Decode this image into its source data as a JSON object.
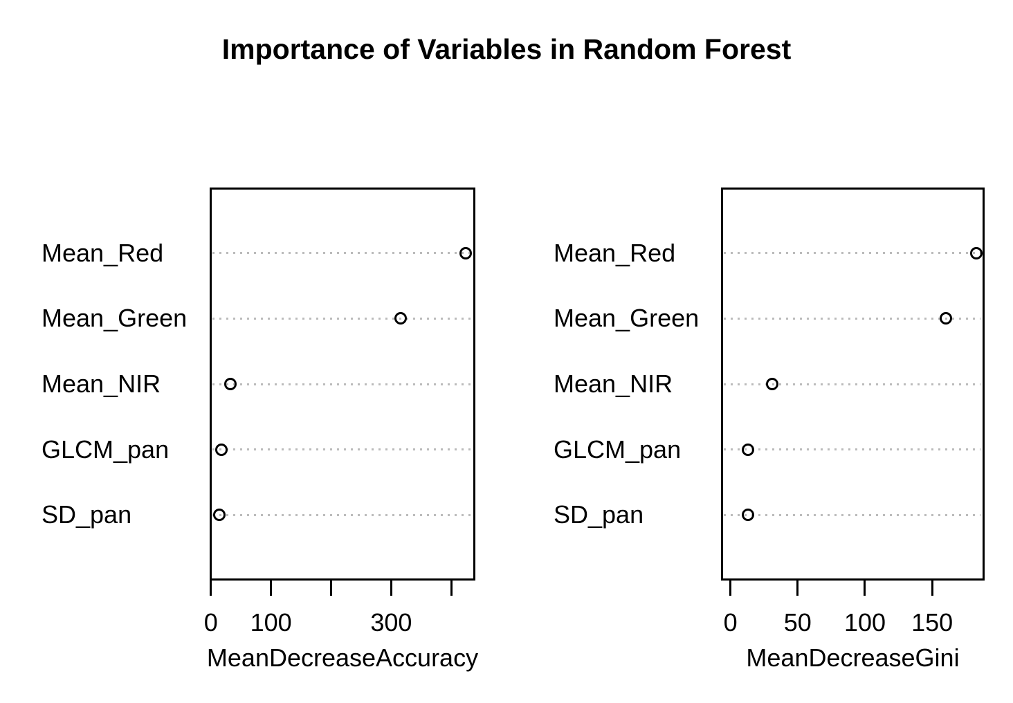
{
  "title": "Importance of Variables in Random Forest",
  "colors": {
    "foreground": "#000000",
    "grid": "#bbbbbb",
    "background": "#ffffff"
  },
  "chart_data": [
    {
      "type": "scatter",
      "subtype": "dotchart",
      "name": "accuracy-panel",
      "xlabel": "MeanDecreaseAccuracy",
      "categories": [
        "Mean_Red",
        "Mean_Green",
        "Mean_NIR",
        "GLCM_pan",
        "SD_pan"
      ],
      "values": [
        424,
        316,
        32,
        18,
        14
      ],
      "xlim": [
        -2,
        440
      ],
      "x_ticks": [
        {
          "value": 0,
          "label": "0"
        },
        {
          "value": 100,
          "label": "100"
        },
        {
          "value": 200,
          "label": ""
        },
        {
          "value": 300,
          "label": "300"
        },
        {
          "value": 400,
          "label": ""
        }
      ],
      "grid": "dotted-horizontal",
      "legend": "none",
      "point_style": "open-circle"
    },
    {
      "type": "scatter",
      "subtype": "dotchart",
      "name": "gini-panel",
      "xlabel": "MeanDecreaseGini",
      "categories": [
        "Mean_Red",
        "Mean_Green",
        "Mean_NIR",
        "GLCM_pan",
        "SD_pan"
      ],
      "values": [
        183,
        160,
        31,
        13,
        13
      ],
      "xlim": [
        -7,
        189
      ],
      "x_ticks": [
        {
          "value": 0,
          "label": "0"
        },
        {
          "value": 50,
          "label": "50"
        },
        {
          "value": 100,
          "label": "100"
        },
        {
          "value": 150,
          "label": "150"
        }
      ],
      "grid": "dotted-horizontal",
      "legend": "none",
      "point_style": "open-circle"
    }
  ]
}
